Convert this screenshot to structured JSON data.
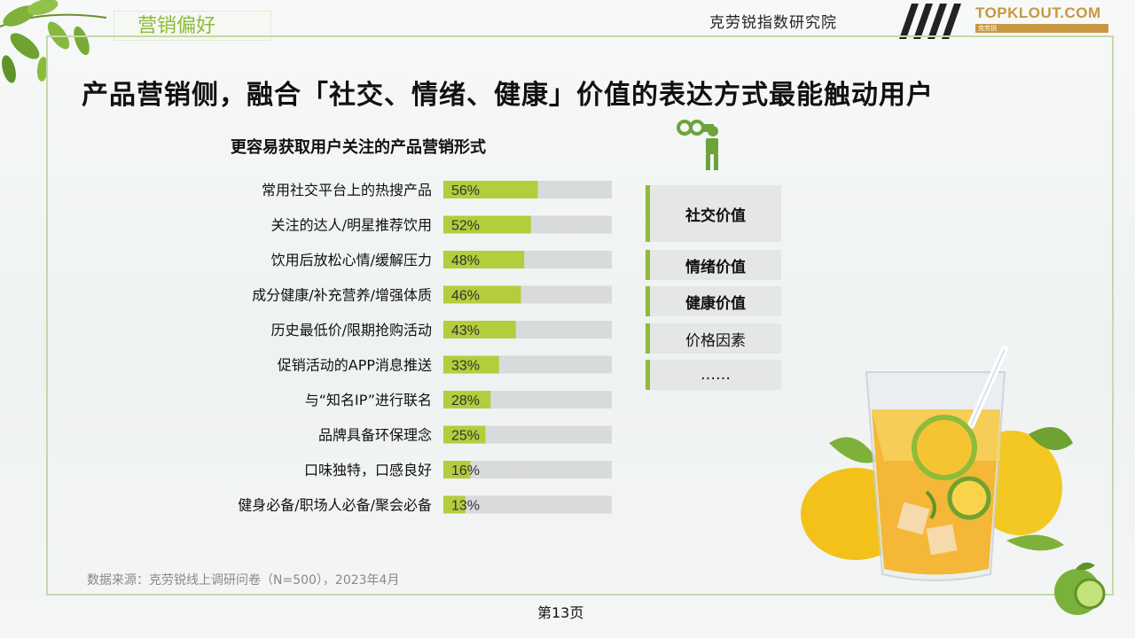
{
  "header": {
    "section_tab": "营销偏好",
    "institute": "克劳锐指数研究院",
    "logo_text": "TOPKLOUT.COM",
    "logo_subtext": "克劳锐",
    "colors": {
      "accent": "#8dbb3a",
      "logo": "#c9973f"
    }
  },
  "headline": "产品营销侧，融合「社交、情绪、健康」价值的表达方式最能触动用户",
  "chart_data": {
    "type": "bar",
    "orientation": "horizontal",
    "title": "更容易获取用户关注的产品营销形式",
    "categories": [
      "常用社交平台上的热搜产品",
      "关注的达人/明星推荐饮用",
      "饮用后放松心情/缓解压力",
      "成分健康/补充营养/增强体质",
      "历史最低价/限期抢购活动",
      "促销活动的APP消息推送",
      "与“知名IP”进行联名",
      "品牌具备环保理念",
      "口味独特，口感良好",
      "健身必备/职场人必备/聚会必备"
    ],
    "values": [
      56,
      52,
      48,
      46,
      43,
      33,
      28,
      25,
      16,
      13
    ],
    "labels": [
      "56%",
      "52%",
      "48%",
      "46%",
      "43%",
      "33%",
      "28%",
      "25%",
      "16%",
      "13%"
    ],
    "unit": "%",
    "xlim": [
      0,
      100
    ],
    "bar_color": "#b3cd3c",
    "track_color": "#d8dadb"
  },
  "value_boxes": [
    {
      "label": "社交价值",
      "bold": true
    },
    {
      "label": "情绪价值",
      "bold": true
    },
    {
      "label": "健康价值",
      "bold": true
    },
    {
      "label": "价格因素",
      "bold": false
    },
    {
      "label": "……",
      "bold": false
    }
  ],
  "footer": {
    "source": "数据来源：克劳锐线上调研问卷（N=500），2023年4月",
    "page_number": "第13页"
  }
}
